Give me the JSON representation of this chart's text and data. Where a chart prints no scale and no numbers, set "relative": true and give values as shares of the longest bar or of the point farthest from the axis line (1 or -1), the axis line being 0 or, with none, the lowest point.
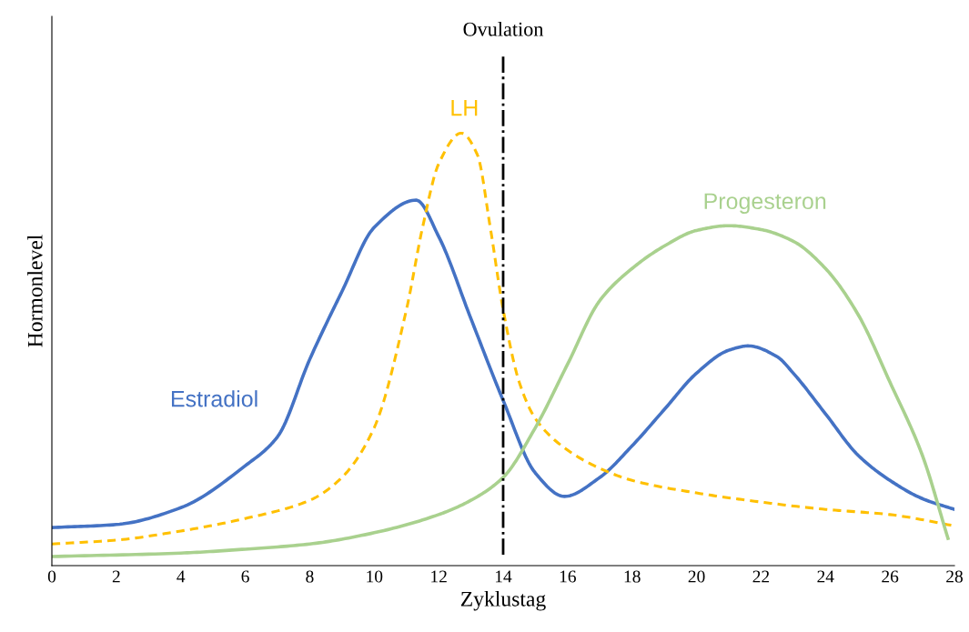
{
  "chart_data": {
    "type": "line",
    "relative": true,
    "xlabel": "Zyklustag",
    "ylabel": "Hormonlevel",
    "xlim": [
      0,
      28
    ],
    "xticks": [
      0,
      2,
      4,
      6,
      8,
      10,
      12,
      14,
      16,
      18,
      20,
      22,
      24,
      26,
      28
    ],
    "tick_labels": "x",
    "grid": false,
    "legend": false,
    "series": [
      {
        "name": "Estradiol",
        "color": "#4472c4",
        "line_style": "solid",
        "x": [
          0,
          2,
          4,
          6,
          7,
          8,
          9,
          10,
          11.3,
          12,
          13,
          14,
          15,
          15.9,
          17,
          18,
          19,
          20,
          21,
          21.6,
          22.5,
          23,
          24,
          25,
          26,
          27,
          28
        ],
        "values": [
          0.088,
          0.095,
          0.134,
          0.231,
          0.298,
          0.477,
          0.634,
          0.782,
          0.845,
          0.761,
          0.571,
          0.382,
          0.214,
          0.16,
          0.204,
          0.277,
          0.361,
          0.445,
          0.498,
          0.508,
          0.483,
          0.445,
          0.351,
          0.256,
          0.197,
          0.155,
          0.13
        ]
      },
      {
        "name": "LH",
        "color": "#ffc000",
        "line_style": "dashed",
        "x": [
          0,
          2,
          4,
          6,
          8,
          9,
          10,
          11,
          11.5,
          12,
          12.7,
          13.2,
          13.6,
          14,
          14.5,
          15,
          16,
          17,
          18,
          20,
          22,
          24,
          26,
          28
        ],
        "values": [
          0.05,
          0.059,
          0.08,
          0.109,
          0.151,
          0.204,
          0.319,
          0.592,
          0.782,
          0.929,
          1,
          0.95,
          0.782,
          0.592,
          0.424,
          0.34,
          0.267,
          0.225,
          0.197,
          0.168,
          0.147,
          0.13,
          0.118,
          0.092
        ]
      },
      {
        "name": "Progesteron",
        "color": "#a9d18e",
        "line_style": "solid",
        "x": [
          0,
          4,
          6,
          8,
          10,
          12,
          13,
          14,
          15,
          16,
          17,
          18,
          19,
          20,
          21,
          22,
          23,
          24,
          25,
          26,
          27,
          27.8
        ],
        "values": [
          0.021,
          0.029,
          0.038,
          0.05,
          0.076,
          0.118,
          0.151,
          0.204,
          0.319,
          0.466,
          0.613,
          0.687,
          0.739,
          0.775,
          0.786,
          0.777,
          0.75,
          0.687,
          0.582,
          0.424,
          0.256,
          0.063
        ]
      }
    ],
    "ref_lines": [
      {
        "axis": "x",
        "value": 14,
        "label": "Ovulation",
        "color": "#000000",
        "line_style": "dashdot"
      }
    ]
  }
}
